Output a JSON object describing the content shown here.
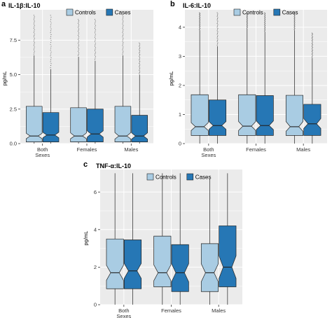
{
  "colors": {
    "Controls": "#a9cce3",
    "Cases": "#2677b5",
    "panel_bg": "#ebebeb",
    "grid": "#ffffff",
    "outline": "#222222"
  },
  "chart_data": [
    {
      "type": "box",
      "letter": "a",
      "title": "IL-1β:IL-10",
      "ylabel": "pg/mL",
      "ylim": [
        0,
        9.7
      ],
      "yticks": [
        "0.0",
        "2.5",
        "5.0",
        "7.5"
      ],
      "ytick_values": [
        0,
        2.5,
        5,
        7.5
      ],
      "categories": [
        "Both\nSexes",
        "Females",
        "Males"
      ],
      "legend": [
        "Controls",
        "Cases"
      ],
      "series": [
        {
          "name": "Controls",
          "boxes": [
            {
              "min": 0,
              "q1": 0.12,
              "median": 0.55,
              "q3": 2.7,
              "max": 6.4,
              "notch_lo": 0.35,
              "notch_hi": 0.75,
              "outliers_to": 9.3
            },
            {
              "min": 0,
              "q1": 0.12,
              "median": 0.55,
              "q3": 2.6,
              "max": 6.3,
              "notch_lo": 0.35,
              "notch_hi": 0.78,
              "outliers_to": 9.0
            },
            {
              "min": 0,
              "q1": 0.12,
              "median": 0.55,
              "q3": 2.7,
              "max": 6.4,
              "notch_lo": 0.33,
              "notch_hi": 0.8,
              "outliers_to": 9.3
            }
          ]
        },
        {
          "name": "Cases",
          "boxes": [
            {
              "min": 0,
              "q1": 0.12,
              "median": 0.62,
              "q3": 2.25,
              "max": 5.4,
              "notch_lo": 0.42,
              "notch_hi": 0.82,
              "outliers_to": 9.3
            },
            {
              "min": 0,
              "q1": 0.12,
              "median": 0.7,
              "q3": 2.5,
              "max": 6.0,
              "notch_lo": 0.47,
              "notch_hi": 0.92,
              "outliers_to": 9.0
            },
            {
              "min": 0,
              "q1": 0.12,
              "median": 0.55,
              "q3": 2.05,
              "max": 5.0,
              "notch_lo": 0.32,
              "notch_hi": 0.78,
              "outliers_to": 7.3
            }
          ]
        }
      ]
    },
    {
      "type": "box",
      "letter": "b",
      "title": "IL-6:IL-10",
      "ylabel": "pg/mL",
      "ylim": [
        0,
        4.6
      ],
      "yticks": [
        "0",
        "1",
        "2",
        "3",
        "4"
      ],
      "ytick_values": [
        0,
        1,
        2,
        3,
        4
      ],
      "categories": [
        "Both\nSexes",
        "Females",
        "Males"
      ],
      "legend": [
        "Controls",
        "Cases"
      ],
      "series": [
        {
          "name": "Controls",
          "boxes": [
            {
              "min": 0,
              "q1": 0.28,
              "median": 0.58,
              "q3": 1.68,
              "max": 3.9,
              "notch_lo": 0.45,
              "notch_hi": 0.72,
              "outliers_to": 4.5
            },
            {
              "min": 0,
              "q1": 0.28,
              "median": 0.6,
              "q3": 1.68,
              "max": 3.95,
              "notch_lo": 0.45,
              "notch_hi": 0.76,
              "outliers_to": 4.5
            },
            {
              "min": 0,
              "q1": 0.28,
              "median": 0.58,
              "q3": 1.66,
              "max": 3.9,
              "notch_lo": 0.42,
              "notch_hi": 0.76,
              "outliers_to": 4.5
            }
          ]
        },
        {
          "name": "Cases",
          "boxes": [
            {
              "min": 0,
              "q1": 0.28,
              "median": 0.62,
              "q3": 1.5,
              "max": 3.35,
              "notch_lo": 0.49,
              "notch_hi": 0.76,
              "outliers_to": 4.5
            },
            {
              "min": 0,
              "q1": 0.28,
              "median": 0.62,
              "q3": 1.65,
              "max": 3.85,
              "notch_lo": 0.48,
              "notch_hi": 0.78,
              "outliers_to": 4.5
            },
            {
              "min": 0,
              "q1": 0.28,
              "median": 0.68,
              "q3": 1.35,
              "max": 2.95,
              "notch_lo": 0.52,
              "notch_hi": 0.86,
              "outliers_to": 3.8
            }
          ]
        }
      ]
    },
    {
      "type": "box",
      "letter": "c",
      "title": "TNF-α:IL-10",
      "ylabel": "pg/mL",
      "ylim": [
        0,
        7.2
      ],
      "yticks": [
        "0",
        "2",
        "4",
        "6"
      ],
      "ytick_values": [
        0,
        2,
        4,
        6
      ],
      "categories": [
        "Both\nSexes",
        "Females",
        "Males"
      ],
      "legend": [
        "Controls",
        "Cases"
      ],
      "series": [
        {
          "name": "Controls",
          "boxes": [
            {
              "min": 0,
              "q1": 0.85,
              "median": 1.7,
              "q3": 3.5,
              "max": 7.0,
              "notch_lo": 1.3,
              "notch_hi": 2.1,
              "outliers_to": null
            },
            {
              "min": 0,
              "q1": 0.95,
              "median": 1.7,
              "q3": 3.65,
              "max": 7.0,
              "notch_lo": 1.28,
              "notch_hi": 2.12,
              "outliers_to": null
            },
            {
              "min": 0,
              "q1": 0.7,
              "median": 1.7,
              "q3": 3.25,
              "max": 6.7,
              "notch_lo": 1.22,
              "notch_hi": 2.18,
              "outliers_to": null
            }
          ]
        },
        {
          "name": "Cases",
          "boxes": [
            {
              "min": 0,
              "q1": 0.85,
              "median": 1.8,
              "q3": 3.45,
              "max": 7.0,
              "notch_lo": 1.4,
              "notch_hi": 2.2,
              "outliers_to": null
            },
            {
              "min": 0,
              "q1": 0.7,
              "median": 1.7,
              "q3": 3.2,
              "max": 7.0,
              "notch_lo": 1.22,
              "notch_hi": 2.18,
              "outliers_to": null
            },
            {
              "min": 0,
              "q1": 0.95,
              "median": 2.0,
              "q3": 4.2,
              "max": 7.0,
              "notch_lo": 1.4,
              "notch_hi": 2.6,
              "outliers_to": null
            }
          ]
        }
      ]
    }
  ]
}
